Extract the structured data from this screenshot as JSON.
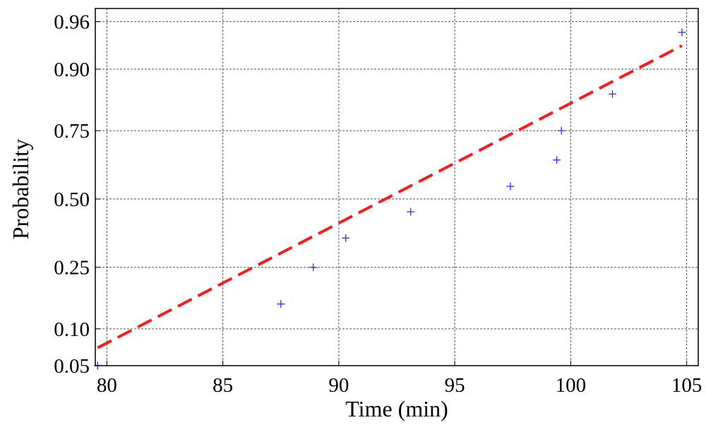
{
  "chart_data": {
    "type": "scatter",
    "title": "",
    "xlabel": "Time (min)",
    "ylabel": "Probability",
    "y_scale": "normal-probability",
    "xlim": [
      79.5,
      105.5
    ],
    "ylim": [
      0.05,
      0.97
    ],
    "grid": true,
    "x_ticks": [
      80,
      85,
      90,
      95,
      100,
      105
    ],
    "x_tick_labels": [
      "80",
      "85",
      "90",
      "95",
      "100",
      "105"
    ],
    "y_ticks": [
      0.05,
      0.1,
      0.25,
      0.5,
      0.75,
      0.9,
      0.96
    ],
    "y_tick_labels": [
      "0.05",
      "0.10",
      "0.25",
      "0.50",
      "0.75",
      "0.90",
      "0.96"
    ],
    "series": [
      {
        "kind": "points",
        "marker": "+",
        "color": "#2a2aff",
        "x": [
          79.6,
          87.5,
          88.9,
          90.3,
          93.1,
          97.4,
          99.4,
          99.6,
          101.8,
          104.8
        ],
        "y": [
          0.05,
          0.15,
          0.25,
          0.35,
          0.45,
          0.55,
          0.65,
          0.75,
          0.85,
          0.95
        ]
      },
      {
        "kind": "fit-line",
        "style": "dashed",
        "color": "#ff1a1a",
        "x": [
          79.6,
          104.8
        ],
        "y": [
          0.071,
          0.935
        ]
      }
    ]
  }
}
